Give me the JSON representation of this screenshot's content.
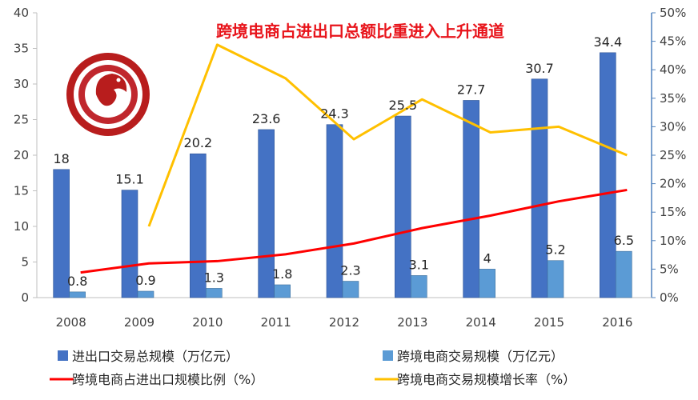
{
  "chart_data": {
    "type": "bar",
    "title": "跨境电商占进出口总额比重进入上升通道",
    "categories": [
      "2008",
      "2009",
      "2010",
      "2011",
      "2012",
      "2013",
      "2014",
      "2015",
      "2016"
    ],
    "y_left": {
      "min": 0,
      "max": 40,
      "ticks": [
        "0",
        "5",
        "10",
        "15",
        "20",
        "25",
        "30",
        "35",
        "40"
      ]
    },
    "y_right": {
      "min": 0,
      "max": 50,
      "ticks": [
        "0%",
        "5%",
        "10%",
        "15%",
        "20%",
        "25%",
        "30%",
        "35%",
        "40%",
        "45%",
        "50%"
      ]
    },
    "series": [
      {
        "name": "进出口交易总规模（万亿元）",
        "kind": "bar",
        "axis": "left",
        "color": "#4472c4",
        "values": [
          18,
          15.1,
          20.2,
          23.6,
          24.3,
          25.5,
          27.7,
          30.7,
          34.4
        ],
        "labels": [
          "18",
          "15.1",
          "20.2",
          "23.6",
          "24.3",
          "25.5",
          "27.7",
          "30.7",
          "34.4"
        ]
      },
      {
        "name": "跨境电商交易规模（万亿元）",
        "kind": "bar",
        "axis": "left",
        "color": "#5b9bd5",
        "values": [
          0.8,
          0.9,
          1.3,
          1.8,
          2.3,
          3.1,
          4,
          5.2,
          6.5
        ],
        "labels": [
          "0.8",
          "0.9",
          "1.3",
          "1.8",
          "2.3",
          "3.1",
          "4",
          "5.2",
          "6.5"
        ]
      },
      {
        "name": "跨境电商占进出口规模比例（%）",
        "kind": "line",
        "axis": "right",
        "color": "#ff0000",
        "values": [
          4.4,
          6.0,
          6.4,
          7.6,
          9.5,
          12.2,
          14.4,
          16.9,
          18.9
        ]
      },
      {
        "name": "跨境电商交易规模增长率（%）",
        "kind": "line",
        "axis": "right",
        "color": "#ffc000",
        "values": [
          null,
          12.5,
          44.4,
          38.5,
          27.8,
          34.8,
          29.0,
          30.0,
          25.0
        ]
      }
    ],
    "legend": "bottom",
    "grid": false
  }
}
